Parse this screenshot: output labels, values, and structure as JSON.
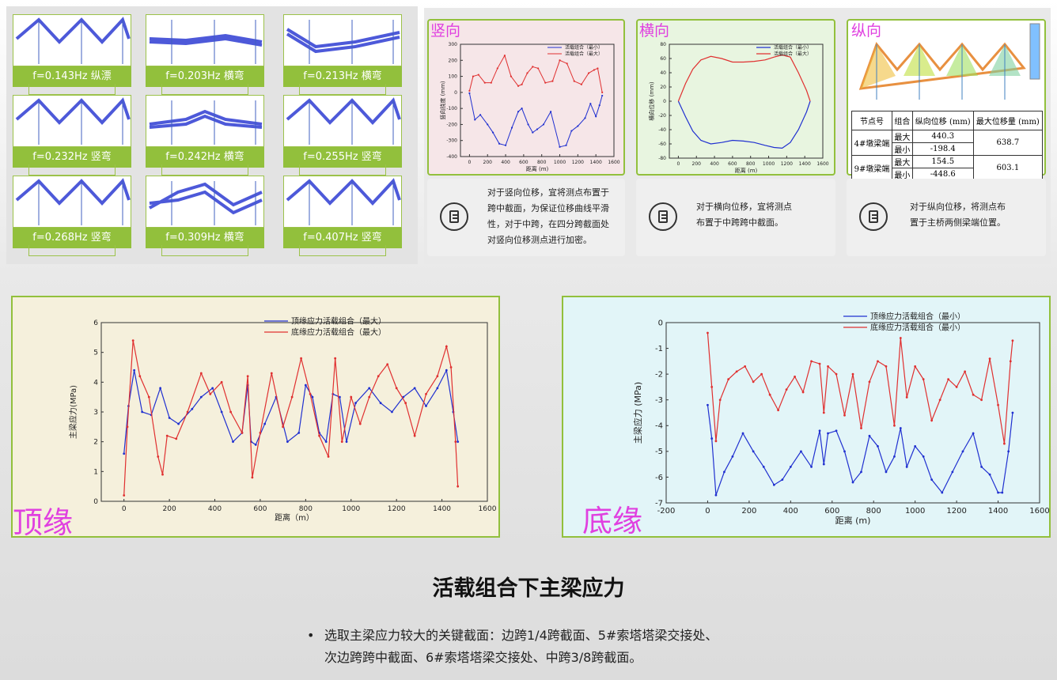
{
  "modes": [
    {
      "label": "f=0.143Hz 纵漂"
    },
    {
      "label": "f=0.203Hz 横弯"
    },
    {
      "label": "f=0.213Hz 横弯"
    },
    {
      "label": "f=0.232Hz 竖弯"
    },
    {
      "label": "f=0.242Hz 横弯"
    },
    {
      "label": "f=0.255Hz 竖弯"
    },
    {
      "label": "f=0.268Hz 竖弯"
    },
    {
      "label": "f=0.309Hz 横弯"
    },
    {
      "label": "f=0.407Hz 竖弯"
    }
  ],
  "vertical": {
    "label": "竖向",
    "legend": [
      "活载组合（最小）",
      "活载组合（最大）"
    ],
    "ylabel": "竖向挠度 (mm)",
    "xlabel": "距离 (m)",
    "note": [
      "对于竖向位移，宜将测点布置于",
      "跨中截面，为保证位移曲线平滑",
      "性，对于中跨，在四分跨截面处",
      "对竖向位移测点进行加密。"
    ]
  },
  "lateral": {
    "label": "横向",
    "legend": [
      "活载组合（最小）",
      "活载组合（最大）"
    ],
    "ylabel": "横向位移 (mm)",
    "xlabel": "距离 (m)",
    "note": [
      "对于横向位移，宜将测点",
      "布置于中跨跨中截面。"
    ]
  },
  "longitudinal": {
    "label": "纵向",
    "note": [
      "对于纵向位移，将测点布",
      "置于主桥两侧梁端位置。"
    ],
    "table": {
      "headers": [
        "节点号",
        "组合",
        "纵向位移 (mm)",
        "最大位移量 (mm)"
      ],
      "rows": [
        {
          "node": "4#墩梁端",
          "combos": [
            "最大",
            "最小"
          ],
          "values": [
            "440.3",
            "-198.4"
          ],
          "max": "638.7"
        },
        {
          "node": "9#墩梁端",
          "combos": [
            "最大",
            "最小"
          ],
          "values": [
            "154.5",
            "-448.6"
          ],
          "max": "603.1"
        }
      ]
    }
  },
  "top_chart": {
    "label": "顶缘",
    "legend": [
      "顶缘应力活载组合（最大）",
      "底缘应力活载组合（最大）"
    ],
    "ylabel": "主梁应力(MPa)",
    "xlabel": "距离（m）"
  },
  "bottom_chart": {
    "label": "底缘",
    "legend": [
      "顶缘应力活载组合（最小）",
      "底缘应力活载组合（最小）"
    ],
    "ylabel": "主梁应力 (MPa)",
    "xlabel": "距离 (m)"
  },
  "colors": {
    "accent": "#92c03c",
    "blue": "#2030d0",
    "red": "#e03030",
    "magenta": "#e040e0"
  },
  "chart_data": [
    {
      "type": "line",
      "title": "",
      "xlabel": "距离 (m)",
      "ylabel": "竖向挠度 (mm)",
      "xlim": [
        -100,
        1600
      ],
      "ylim": [
        -400,
        300
      ],
      "xticks": [
        0,
        200,
        400,
        600,
        800,
        1000,
        1200,
        1400,
        1600
      ],
      "yticks": [
        300,
        200,
        100,
        0,
        -100,
        -200,
        -300,
        -400
      ],
      "series": [
        {
          "name": "活载组合（最小）",
          "color": "#2030d0",
          "x": [
            0,
            60,
            120,
            200,
            260,
            330,
            400,
            470,
            540,
            580,
            650,
            700,
            750,
            820,
            900,
            1000,
            1070,
            1130,
            1200,
            1280,
            1340,
            1400,
            1440,
            1470
          ],
          "y": [
            -5,
            -170,
            -140,
            -200,
            -250,
            -320,
            -330,
            -220,
            -120,
            -100,
            -200,
            -250,
            -230,
            -200,
            -120,
            -340,
            -330,
            -240,
            -210,
            -160,
            -70,
            -150,
            -80,
            -20
          ]
        },
        {
          "name": "活载组合（最大）",
          "color": "#e03030",
          "x": [
            0,
            40,
            100,
            170,
            240,
            310,
            390,
            460,
            540,
            580,
            640,
            700,
            760,
            840,
            920,
            1000,
            1080,
            1160,
            1240,
            1320,
            1380,
            1420,
            1470
          ],
          "y": [
            10,
            100,
            110,
            60,
            60,
            150,
            230,
            100,
            40,
            50,
            120,
            160,
            150,
            60,
            70,
            200,
            180,
            70,
            50,
            120,
            140,
            150,
            0
          ]
        }
      ]
    },
    {
      "type": "line",
      "title": "",
      "xlabel": "距离 (m)",
      "ylabel": "横向位移 (mm)",
      "xlim": [
        -100,
        1600
      ],
      "ylim": [
        -80,
        80
      ],
      "xticks": [
        0,
        200,
        400,
        600,
        800,
        1000,
        1200,
        1400,
        1600
      ],
      "yticks": [
        80,
        60,
        40,
        20,
        0,
        -20,
        -40,
        -60,
        -80
      ],
      "series": [
        {
          "name": "活载组合（最小）",
          "color": "#2030d0",
          "x": [
            0,
            80,
            160,
            250,
            360,
            480,
            600,
            720,
            840,
            960,
            1060,
            1150,
            1240,
            1330,
            1420,
            1460
          ],
          "y": [
            0,
            -22,
            -42,
            -55,
            -60,
            -58,
            -55,
            -56,
            -58,
            -62,
            -65,
            -66,
            -58,
            -40,
            -15,
            0
          ]
        },
        {
          "name": "活载组合（最大）",
          "color": "#e03030",
          "x": [
            0,
            80,
            160,
            250,
            360,
            480,
            600,
            720,
            840,
            960,
            1060,
            1150,
            1240,
            1330,
            1420,
            1460
          ],
          "y": [
            0,
            25,
            45,
            58,
            63,
            60,
            55,
            55,
            56,
            58,
            62,
            65,
            62,
            40,
            15,
            0
          ]
        }
      ]
    },
    {
      "type": "line",
      "title": "",
      "xlabel": "距离（m）",
      "ylabel": "主梁应力(MPa)",
      "xlim": [
        -100,
        1600
      ],
      "ylim": [
        0,
        6
      ],
      "xticks": [
        0,
        200,
        400,
        600,
        800,
        1000,
        1200,
        1400,
        1600
      ],
      "yticks": [
        0,
        1,
        2,
        3,
        4,
        5,
        6
      ],
      "series": [
        {
          "name": "顶缘应力活载组合（最大）",
          "color": "#2030d0",
          "x": [
            0,
            20,
            45,
            80,
            120,
            160,
            200,
            240,
            300,
            340,
            390,
            430,
            480,
            520,
            545,
            560,
            580,
            620,
            670,
            720,
            770,
            800,
            830,
            860,
            890,
            920,
            950,
            980,
            1020,
            1080,
            1130,
            1180,
            1230,
            1280,
            1330,
            1380,
            1420,
            1450,
            1470
          ],
          "y": [
            1.6,
            3.2,
            4.4,
            3.0,
            2.9,
            3.8,
            2.8,
            2.6,
            3.1,
            3.5,
            3.8,
            3.0,
            2.0,
            2.3,
            3.9,
            2.0,
            1.9,
            2.6,
            3.5,
            2.0,
            2.3,
            3.9,
            3.5,
            2.3,
            2.0,
            3.6,
            3.5,
            2.0,
            3.3,
            3.8,
            3.3,
            3.0,
            3.5,
            3.8,
            3.2,
            3.8,
            4.4,
            3.0,
            2.0
          ]
        },
        {
          "name": "底缘应力活载组合（最大）",
          "color": "#e03030",
          "x": [
            0,
            15,
            40,
            70,
            110,
            150,
            170,
            190,
            230,
            280,
            340,
            380,
            430,
            470,
            520,
            545,
            565,
            600,
            650,
            700,
            740,
            780,
            820,
            860,
            900,
            930,
            960,
            1000,
            1040,
            1080,
            1120,
            1160,
            1200,
            1240,
            1280,
            1330,
            1380,
            1420,
            1440,
            1460,
            1470
          ],
          "y": [
            0.2,
            2.5,
            5.4,
            4.2,
            3.5,
            1.5,
            0.9,
            2.2,
            2.1,
            3.0,
            4.3,
            3.6,
            4.0,
            3.0,
            2.3,
            4.2,
            0.8,
            2.3,
            4.3,
            2.5,
            3.5,
            4.8,
            3.6,
            2.2,
            1.5,
            4.8,
            2.0,
            3.5,
            2.6,
            3.5,
            4.2,
            4.6,
            3.8,
            3.3,
            2.2,
            3.6,
            4.2,
            5.2,
            4.5,
            2.0,
            0.5
          ]
        }
      ]
    },
    {
      "type": "line",
      "title": "",
      "xlabel": "距离 (m)",
      "ylabel": "主梁应力 (MPa)",
      "xlim": [
        -200,
        1600
      ],
      "ylim": [
        -7,
        0
      ],
      "xticks": [
        -200,
        0,
        200,
        400,
        600,
        800,
        1000,
        1200,
        1400,
        1600
      ],
      "yticks": [
        0,
        -1,
        -2,
        -3,
        -4,
        -5,
        -6,
        -7
      ],
      "series": [
        {
          "name": "顶缘应力活载组合（最小）",
          "color": "#2030d0",
          "x": [
            0,
            20,
            40,
            80,
            120,
            170,
            220,
            270,
            320,
            360,
            400,
            450,
            500,
            540,
            560,
            580,
            620,
            660,
            700,
            740,
            780,
            820,
            860,
            900,
            930,
            960,
            1000,
            1040,
            1080,
            1130,
            1180,
            1230,
            1280,
            1320,
            1360,
            1400,
            1420,
            1450,
            1470
          ],
          "y": [
            -3.2,
            -4.5,
            -6.7,
            -5.8,
            -5.2,
            -4.3,
            -5.0,
            -5.6,
            -6.3,
            -6.1,
            -5.6,
            -5.0,
            -5.6,
            -4.2,
            -5.5,
            -4.3,
            -4.2,
            -5.0,
            -6.2,
            -5.8,
            -4.4,
            -4.8,
            -5.8,
            -5.2,
            -4.1,
            -5.6,
            -4.8,
            -5.2,
            -6.1,
            -6.6,
            -5.8,
            -5.0,
            -4.3,
            -5.6,
            -5.9,
            -6.6,
            -6.6,
            -5.0,
            -3.5
          ]
        },
        {
          "name": "底缘应力活载组合（最小）",
          "color": "#e03030",
          "x": [
            0,
            20,
            40,
            60,
            100,
            140,
            180,
            220,
            260,
            300,
            340,
            380,
            420,
            460,
            500,
            540,
            560,
            580,
            620,
            660,
            700,
            740,
            780,
            820,
            860,
            900,
            930,
            960,
            1000,
            1040,
            1080,
            1120,
            1160,
            1200,
            1240,
            1280,
            1320,
            1360,
            1400,
            1430,
            1460,
            1470
          ],
          "y": [
            -0.4,
            -2.5,
            -4.6,
            -3.0,
            -2.2,
            -1.9,
            -1.7,
            -2.3,
            -2.0,
            -2.8,
            -3.4,
            -2.6,
            -2.1,
            -2.7,
            -1.5,
            -1.6,
            -3.5,
            -1.7,
            -2.0,
            -3.6,
            -2.0,
            -4.1,
            -2.3,
            -1.5,
            -1.7,
            -4.0,
            -0.6,
            -2.9,
            -1.7,
            -2.2,
            -3.8,
            -3.0,
            -2.2,
            -2.5,
            -1.9,
            -2.8,
            -3.0,
            -1.4,
            -3.2,
            -4.7,
            -1.5,
            -0.7
          ]
        }
      ]
    }
  ],
  "page": {
    "title": "活载组合下主梁应力",
    "bullet": "•",
    "bullet_line1": "选取主梁应力较大的关键截面：边跨1/4跨截面、5#索塔塔梁交接处、",
    "bullet_line2": "次边跨跨中截面、6#索塔塔梁交接处、中跨3/8跨截面。"
  }
}
